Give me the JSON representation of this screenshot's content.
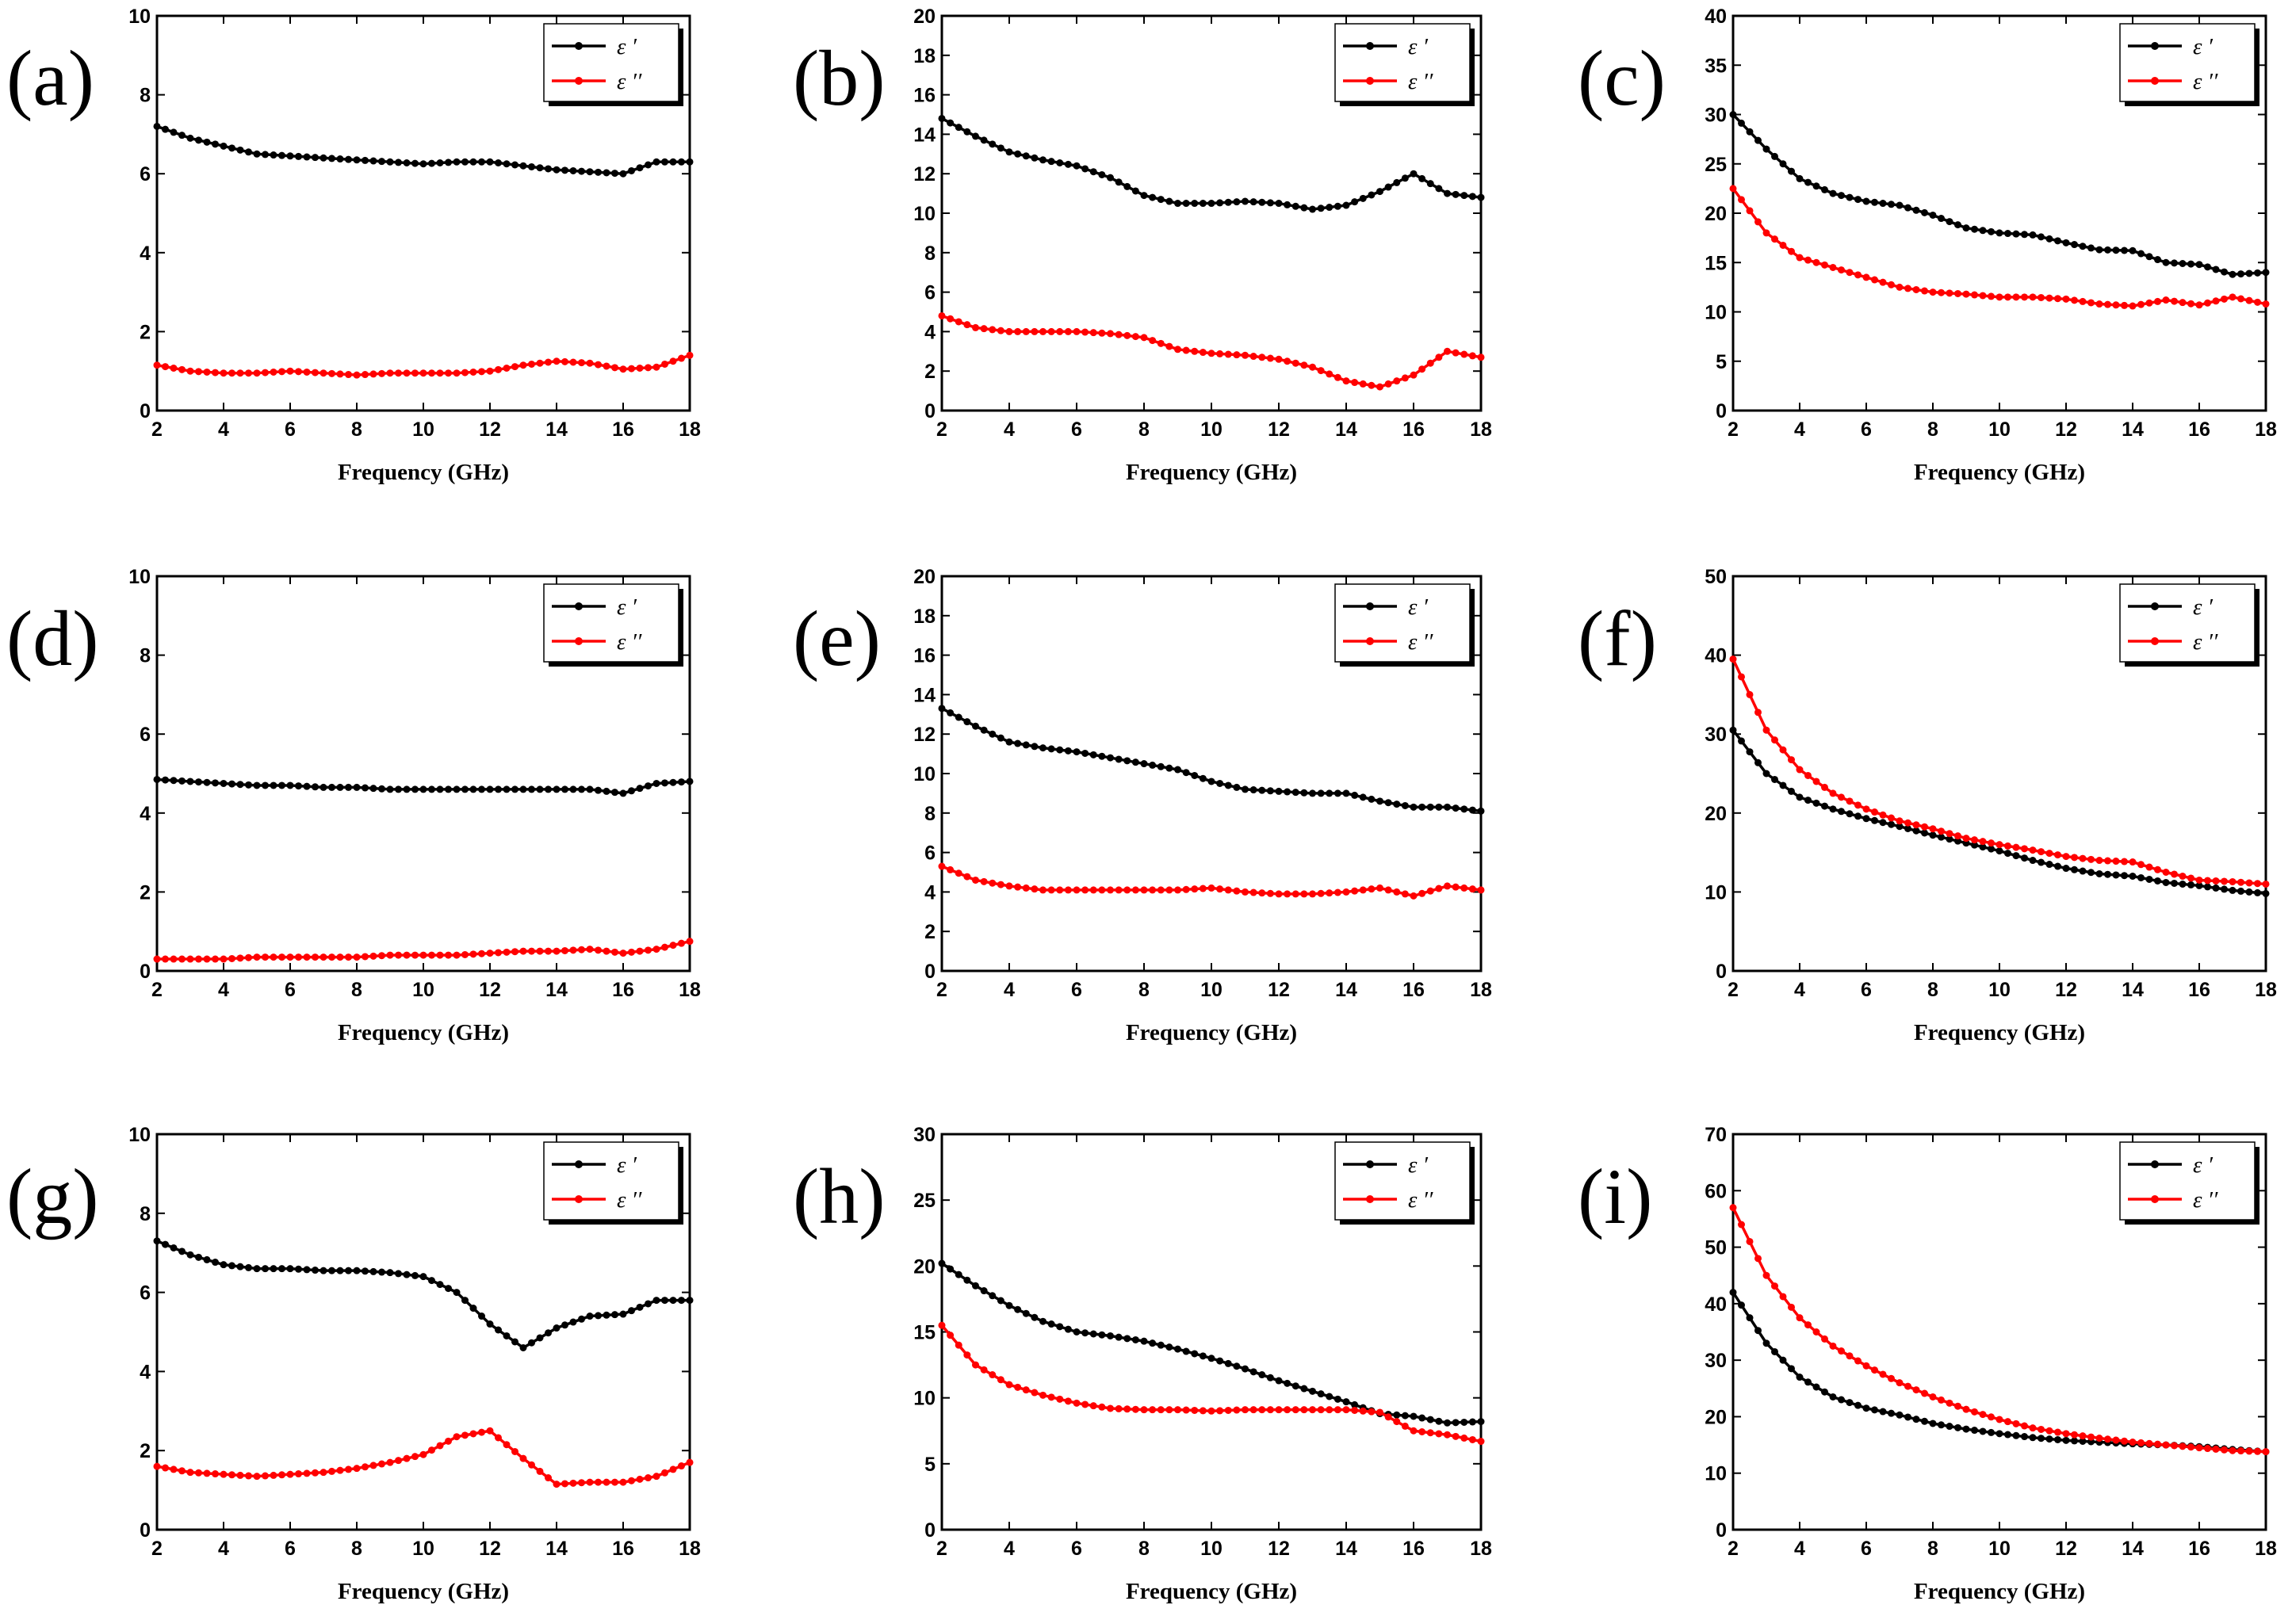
{
  "figure": {
    "series_colors": {
      "real": "#000000",
      "imag": "#ff0000"
    }
  },
  "chart_data": [
    {
      "panel": "(a)",
      "type": "line",
      "xlabel": "Frequency (GHz)",
      "ylabel": "",
      "xlim": [
        2,
        18
      ],
      "ylim": [
        0,
        10
      ],
      "xticks": [
        2,
        4,
        6,
        8,
        10,
        12,
        14,
        16,
        18
      ],
      "yticks": [
        0,
        2,
        4,
        6,
        8,
        10
      ],
      "legend": [
        "ε ′",
        "ε ′′"
      ],
      "x": [
        2,
        3,
        4,
        5,
        6,
        7,
        8,
        9,
        10,
        11,
        12,
        13,
        14,
        15,
        16,
        17,
        18
      ],
      "series": [
        {
          "name": "ε ′",
          "color": "#000000",
          "values": [
            7.2,
            6.9,
            6.7,
            6.5,
            6.45,
            6.4,
            6.35,
            6.3,
            6.25,
            6.3,
            6.3,
            6.2,
            6.1,
            6.05,
            6.0,
            6.3,
            6.3
          ]
        },
        {
          "name": "ε ′′",
          "color": "#ff0000",
          "values": [
            1.15,
            1.0,
            0.95,
            0.95,
            1.0,
            0.95,
            0.9,
            0.95,
            0.95,
            0.95,
            1.0,
            1.15,
            1.25,
            1.2,
            1.05,
            1.1,
            1.4
          ]
        }
      ]
    },
    {
      "panel": "(b)",
      "type": "line",
      "xlabel": "Frequency (GHz)",
      "ylabel": "",
      "xlim": [
        2,
        18
      ],
      "ylim": [
        0,
        20
      ],
      "xticks": [
        2,
        4,
        6,
        8,
        10,
        12,
        14,
        16,
        18
      ],
      "yticks": [
        0,
        2,
        4,
        6,
        8,
        10,
        12,
        14,
        16,
        18,
        20
      ],
      "legend": [
        "ε ′",
        "ε ′′"
      ],
      "x": [
        2,
        3,
        4,
        5,
        6,
        7,
        8,
        9,
        10,
        11,
        12,
        13,
        14,
        15,
        16,
        17,
        18
      ],
      "series": [
        {
          "name": "ε ′",
          "color": "#000000",
          "values": [
            14.8,
            13.9,
            13.1,
            12.7,
            12.4,
            11.8,
            10.9,
            10.5,
            10.5,
            10.6,
            10.5,
            10.2,
            10.4,
            11.1,
            12.0,
            11.0,
            10.8
          ]
        },
        {
          "name": "ε ′′",
          "color": "#ff0000",
          "values": [
            4.8,
            4.2,
            4.0,
            4.0,
            4.0,
            3.9,
            3.7,
            3.1,
            2.9,
            2.8,
            2.6,
            2.2,
            1.5,
            1.2,
            1.8,
            3.0,
            2.7
          ]
        }
      ]
    },
    {
      "panel": "(c)",
      "type": "line",
      "xlabel": "Frequency (GHz)",
      "ylabel": "",
      "xlim": [
        2,
        18
      ],
      "ylim": [
        0,
        40
      ],
      "xticks": [
        2,
        4,
        6,
        8,
        10,
        12,
        14,
        16,
        18
      ],
      "yticks": [
        0,
        5,
        10,
        15,
        20,
        25,
        30,
        35,
        40
      ],
      "legend": [
        "ε ′",
        "ε ′′"
      ],
      "x": [
        2,
        3,
        4,
        5,
        6,
        7,
        8,
        9,
        10,
        11,
        12,
        13,
        14,
        15,
        16,
        17,
        18
      ],
      "series": [
        {
          "name": "ε ′",
          "color": "#000000",
          "values": [
            30,
            26.5,
            23.5,
            22.0,
            21.2,
            20.8,
            19.8,
            18.5,
            18.0,
            17.8,
            17.0,
            16.3,
            16.2,
            15.0,
            14.8,
            13.8,
            14.0
          ]
        },
        {
          "name": "ε ′′",
          "color": "#ff0000",
          "values": [
            22.5,
            18.0,
            15.5,
            14.5,
            13.5,
            12.5,
            12.0,
            11.8,
            11.5,
            11.5,
            11.3,
            10.8,
            10.6,
            11.2,
            10.7,
            11.5,
            10.8
          ]
        }
      ]
    },
    {
      "panel": "(d)",
      "type": "line",
      "xlabel": "Frequency (GHz)",
      "ylabel": "",
      "xlim": [
        2,
        18
      ],
      "ylim": [
        0,
        10
      ],
      "xticks": [
        2,
        4,
        6,
        8,
        10,
        12,
        14,
        16,
        18
      ],
      "yticks": [
        0,
        2,
        4,
        6,
        8,
        10
      ],
      "legend": [
        "ε ′",
        "ε ′′"
      ],
      "x": [
        2,
        3,
        4,
        5,
        6,
        7,
        8,
        9,
        10,
        11,
        12,
        13,
        14,
        15,
        16,
        17,
        18
      ],
      "series": [
        {
          "name": "ε ′",
          "color": "#000000",
          "values": [
            4.85,
            4.8,
            4.75,
            4.7,
            4.7,
            4.65,
            4.65,
            4.6,
            4.6,
            4.6,
            4.6,
            4.6,
            4.6,
            4.6,
            4.5,
            4.75,
            4.8
          ]
        },
        {
          "name": "ε ′′",
          "color": "#ff0000",
          "values": [
            0.3,
            0.3,
            0.3,
            0.35,
            0.35,
            0.35,
            0.35,
            0.4,
            0.4,
            0.4,
            0.45,
            0.5,
            0.5,
            0.55,
            0.45,
            0.55,
            0.75
          ]
        }
      ]
    },
    {
      "panel": "(e)",
      "type": "line",
      "xlabel": "Frequency (GHz)",
      "ylabel": "",
      "xlim": [
        2,
        18
      ],
      "ylim": [
        0,
        20
      ],
      "xticks": [
        2,
        4,
        6,
        8,
        10,
        12,
        14,
        16,
        18
      ],
      "yticks": [
        0,
        2,
        4,
        6,
        8,
        10,
        12,
        14,
        16,
        18,
        20
      ],
      "legend": [
        "ε ′",
        "ε ′′"
      ],
      "x": [
        2,
        3,
        4,
        5,
        6,
        7,
        8,
        9,
        10,
        11,
        12,
        13,
        14,
        15,
        16,
        17,
        18
      ],
      "series": [
        {
          "name": "ε ′",
          "color": "#000000",
          "values": [
            13.3,
            12.4,
            11.6,
            11.3,
            11.1,
            10.8,
            10.5,
            10.2,
            9.6,
            9.2,
            9.1,
            9.0,
            9.0,
            8.6,
            8.3,
            8.3,
            8.1
          ]
        },
        {
          "name": "ε ′′",
          "color": "#ff0000",
          "values": [
            5.3,
            4.6,
            4.3,
            4.1,
            4.1,
            4.1,
            4.1,
            4.1,
            4.2,
            4.0,
            3.9,
            3.9,
            4.0,
            4.2,
            3.8,
            4.3,
            4.1
          ]
        }
      ]
    },
    {
      "panel": "(f)",
      "type": "line",
      "xlabel": "Frequency (GHz)",
      "ylabel": "",
      "xlim": [
        2,
        18
      ],
      "ylim": [
        0,
        50
      ],
      "xticks": [
        2,
        4,
        6,
        8,
        10,
        12,
        14,
        16,
        18
      ],
      "yticks": [
        0,
        10,
        20,
        30,
        40,
        50
      ],
      "legend": [
        "ε ′",
        "ε ′′"
      ],
      "x": [
        2,
        3,
        4,
        5,
        6,
        7,
        8,
        9,
        10,
        11,
        12,
        13,
        14,
        15,
        16,
        17,
        18
      ],
      "series": [
        {
          "name": "ε ′",
          "color": "#000000",
          "values": [
            30.5,
            25.0,
            22.0,
            20.5,
            19.3,
            18.3,
            17.2,
            16.2,
            15.2,
            14.0,
            13.0,
            12.3,
            12.0,
            11.2,
            10.8,
            10.2,
            9.8
          ]
        },
        {
          "name": "ε ′′",
          "color": "#ff0000",
          "values": [
            39.5,
            30.5,
            25.5,
            22.5,
            20.5,
            19.0,
            18.0,
            16.8,
            16.0,
            15.3,
            14.5,
            14.0,
            13.8,
            12.5,
            11.5,
            11.3,
            11.0
          ]
        }
      ]
    },
    {
      "panel": "(g)",
      "type": "line",
      "xlabel": "Frequency (GHz)",
      "ylabel": "",
      "xlim": [
        2,
        18
      ],
      "ylim": [
        0,
        10
      ],
      "xticks": [
        2,
        4,
        6,
        8,
        10,
        12,
        14,
        16,
        18
      ],
      "yticks": [
        0,
        2,
        4,
        6,
        8,
        10
      ],
      "legend": [
        "ε ′",
        "ε ′′"
      ],
      "x": [
        2,
        3,
        4,
        5,
        6,
        7,
        8,
        9,
        10,
        11,
        12,
        13,
        14,
        15,
        16,
        17,
        18
      ],
      "series": [
        {
          "name": "ε ′",
          "color": "#000000",
          "values": [
            7.3,
            6.95,
            6.7,
            6.6,
            6.6,
            6.55,
            6.55,
            6.5,
            6.4,
            6.0,
            5.2,
            4.6,
            5.1,
            5.4,
            5.45,
            5.8,
            5.8
          ]
        },
        {
          "name": "ε ′′",
          "color": "#ff0000",
          "values": [
            1.6,
            1.45,
            1.4,
            1.35,
            1.4,
            1.45,
            1.55,
            1.7,
            1.9,
            2.35,
            2.5,
            1.8,
            1.15,
            1.2,
            1.2,
            1.35,
            1.7
          ]
        }
      ]
    },
    {
      "panel": "(h)",
      "type": "line",
      "xlabel": "Frequency (GHz)",
      "ylabel": "",
      "xlim": [
        2,
        18
      ],
      "ylim": [
        0,
        30
      ],
      "xticks": [
        2,
        4,
        6,
        8,
        10,
        12,
        14,
        16,
        18
      ],
      "yticks": [
        0,
        5,
        10,
        15,
        20,
        25,
        30
      ],
      "legend": [
        "ε ′",
        "ε ′′"
      ],
      "x": [
        2,
        3,
        4,
        5,
        6,
        7,
        8,
        9,
        10,
        11,
        12,
        13,
        14,
        15,
        16,
        17,
        18
      ],
      "series": [
        {
          "name": "ε ′",
          "color": "#000000",
          "values": [
            20.2,
            18.5,
            17.0,
            15.8,
            15.0,
            14.7,
            14.3,
            13.7,
            13.0,
            12.2,
            11.3,
            10.5,
            9.7,
            8.8,
            8.6,
            8.1,
            8.2
          ]
        },
        {
          "name": "ε ′′",
          "color": "#ff0000",
          "values": [
            15.5,
            12.5,
            11.0,
            10.2,
            9.6,
            9.2,
            9.1,
            9.1,
            9.0,
            9.1,
            9.1,
            9.1,
            9.1,
            8.9,
            7.5,
            7.2,
            6.7
          ]
        }
      ]
    },
    {
      "panel": "(i)",
      "type": "line",
      "xlabel": "Frequency (GHz)",
      "ylabel": "",
      "xlim": [
        2,
        18
      ],
      "ylim": [
        0,
        70
      ],
      "xticks": [
        2,
        4,
        6,
        8,
        10,
        12,
        14,
        16,
        18
      ],
      "yticks": [
        0,
        10,
        20,
        30,
        40,
        50,
        60,
        70
      ],
      "legend": [
        "ε ′",
        "ε ′′"
      ],
      "x": [
        2,
        3,
        4,
        5,
        6,
        7,
        8,
        9,
        10,
        11,
        12,
        13,
        14,
        15,
        16,
        17,
        18
      ],
      "series": [
        {
          "name": "ε ′",
          "color": "#000000",
          "values": [
            42.0,
            33.0,
            27.0,
            23.5,
            21.5,
            20.3,
            18.8,
            17.8,
            17.0,
            16.3,
            15.8,
            15.5,
            15.2,
            15.0,
            14.7,
            14.2,
            13.8
          ]
        },
        {
          "name": "ε ′′",
          "color": "#ff0000",
          "values": [
            57.0,
            45.0,
            37.5,
            32.5,
            29.0,
            26.0,
            23.5,
            21.3,
            19.5,
            18.0,
            17.0,
            16.2,
            15.5,
            15.0,
            14.5,
            14.0,
            13.8
          ]
        }
      ]
    }
  ]
}
